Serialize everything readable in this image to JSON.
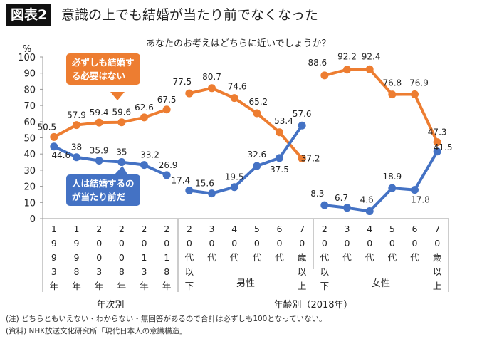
{
  "header": {
    "badge": "図表2",
    "title": "意識の上でも結婚が当たり前でなくなった"
  },
  "chart_data": {
    "type": "line",
    "subtitle": "あなたのお考えはどちらに近いでしょうか？",
    "ylabel": "%",
    "ylim": [
      0,
      100
    ],
    "yticks": [
      0,
      10,
      20,
      30,
      40,
      50,
      60,
      70,
      80,
      90,
      100
    ],
    "grid": false,
    "categories": [
      "1993年",
      "1998年",
      "2003年",
      "2008年",
      "2013年",
      "2018年",
      "20代以下",
      "30代",
      "40代",
      "50代",
      "60代",
      "70歳以上",
      "20代以下",
      "30代",
      "40代",
      "50代",
      "60代",
      "70歳以上"
    ],
    "groups": [
      {
        "label": "年次別",
        "range": [
          0,
          5
        ]
      },
      {
        "label": "男性",
        "range": [
          6,
          11
        ],
        "parent": "年齢別（2018年）"
      },
      {
        "label": "女性",
        "range": [
          12,
          17
        ],
        "parent": "年齢別（2018年）"
      }
    ],
    "parent_group": "年齢別（2018年）",
    "series": [
      {
        "name": "必ずしも結婚する必要はない",
        "color": "#ED7D31",
        "values": [
          50.5,
          57.9,
          59.4,
          59.6,
          62.6,
          67.5,
          77.5,
          80.7,
          74.6,
          65.2,
          53.4,
          37.2,
          88.6,
          92.2,
          92.4,
          76.8,
          76.9,
          47.3
        ]
      },
      {
        "name": "人は結婚するのが当たり前だ",
        "color": "#4472C4",
        "values": [
          44.6,
          38,
          35.9,
          35,
          33.2,
          26.9,
          17.4,
          15.6,
          19.5,
          32.6,
          37.5,
          57.6,
          8.3,
          6.7,
          4.6,
          18.9,
          17.8,
          41.5
        ]
      }
    ]
  },
  "callouts": {
    "orange_line1": "必ずしも結婚す",
    "orange_line2": "る必要はない",
    "blue_line1": "人は結婚するの",
    "blue_line2": "が当たり前だ"
  },
  "notes": {
    "note1": "(注) どちらともいえない・わからない・無回答があるので合計は必ずしも100となっていない。",
    "note2": "(資料) NHK放送文化研究所「現代日本人の意識構造」"
  }
}
